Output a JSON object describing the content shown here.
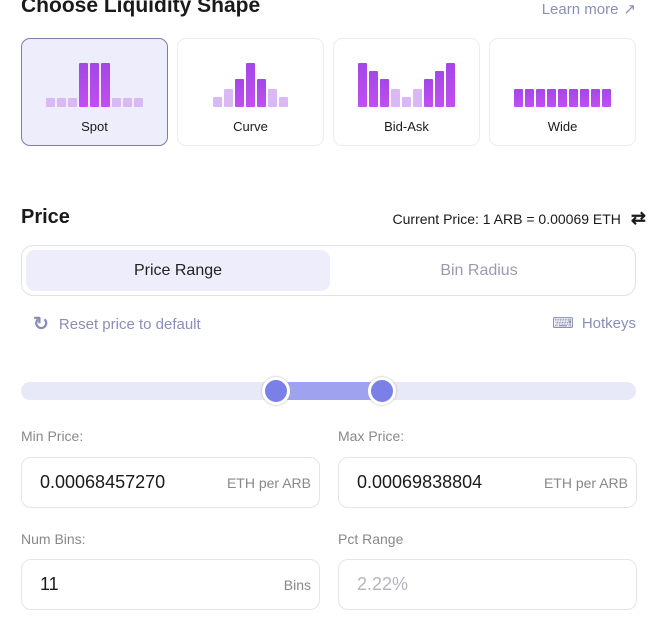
{
  "header": {
    "title": "Choose Liquidity Shape",
    "learn_more": "Learn more"
  },
  "shapes": [
    {
      "label": "Spot",
      "selected": true
    },
    {
      "label": "Curve",
      "selected": false
    },
    {
      "label": "Bid-Ask",
      "selected": false
    },
    {
      "label": "Wide",
      "selected": false
    }
  ],
  "price": {
    "title": "Price",
    "current": "Current Price: 1 ARB = 0.00069 ETH"
  },
  "tabs": [
    {
      "label": "Price Range",
      "active": true
    },
    {
      "label": "Bin Radius",
      "active": false
    }
  ],
  "reset_label": "Reset price to default",
  "hotkeys_label": "Hotkeys",
  "slider": {
    "low": 0.415,
    "high": 0.587
  },
  "fields": {
    "min": {
      "label": "Min Price:",
      "value": "0.00068457270",
      "unit": "ETH per ARB"
    },
    "max": {
      "label": "Max Price:",
      "value": "0.00069838804",
      "unit": "ETH per ARB"
    },
    "bins": {
      "label": "Num Bins:",
      "value": "11",
      "unit": "Bins"
    },
    "pct": {
      "label": "Pct Range",
      "value": "2.22%"
    }
  },
  "colors": {
    "accent": "#7b80e8",
    "bar_dark": "#a347e8",
    "bar_light": "#d9b8f5"
  }
}
